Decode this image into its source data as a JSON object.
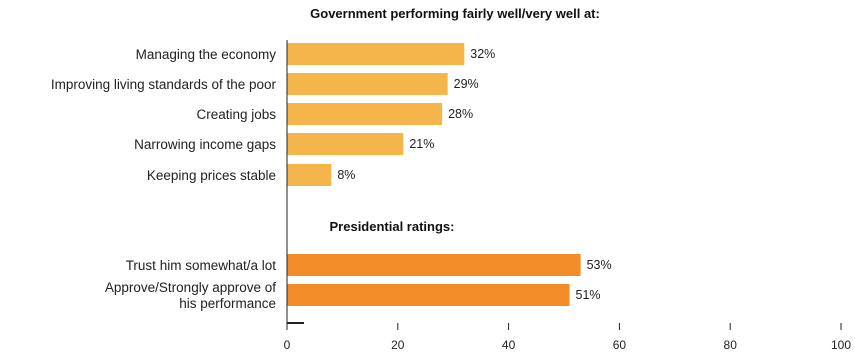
{
  "chart_data": {
    "type": "bar",
    "orientation": "horizontal",
    "xlim": [
      0,
      100
    ],
    "x_ticks": [
      0,
      20,
      40,
      60,
      80,
      100
    ],
    "grid": false,
    "groups": [
      {
        "title": "Government performing fairly well/very well at:",
        "color": "#F4B54A",
        "items": [
          {
            "label": [
              "Managing the economy"
            ],
            "value": 32,
            "value_label": "32%"
          },
          {
            "label": [
              "Improving living standards of the poor"
            ],
            "value": 29,
            "value_label": "29%"
          },
          {
            "label": [
              "Creating jobs"
            ],
            "value": 28,
            "value_label": "28%"
          },
          {
            "label": [
              "Narrowing income gaps"
            ],
            "value": 21,
            "value_label": "21%"
          },
          {
            "label": [
              "Keeping prices stable"
            ],
            "value": 8,
            "value_label": "8%"
          }
        ]
      },
      {
        "title": "Presidential ratings:",
        "color": "#F28C28",
        "items": [
          {
            "label": [
              "Trust him somewhat/a lot"
            ],
            "value": 53,
            "value_label": "53%"
          },
          {
            "label": [
              "Approve/Strongly approve of",
              "his performance"
            ],
            "value": 51,
            "value_label": "51%"
          }
        ]
      }
    ]
  }
}
